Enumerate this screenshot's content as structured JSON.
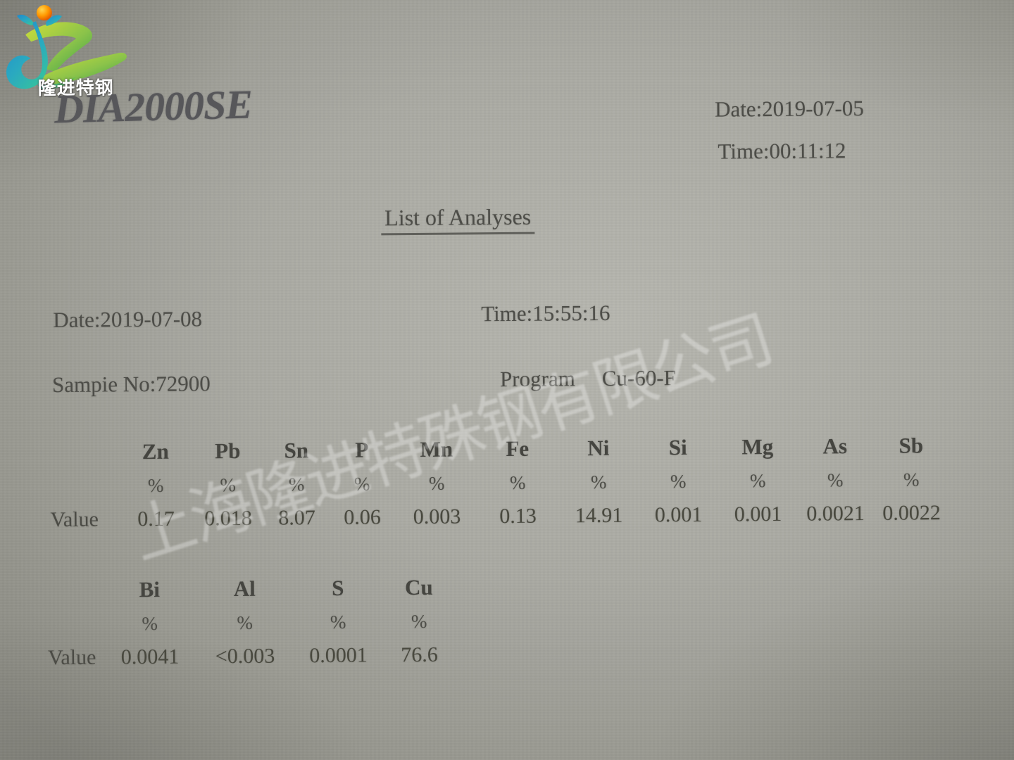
{
  "page": {
    "logo": {
      "text": "隆进特钢"
    },
    "title": "DIA2000SE",
    "printed": {
      "date_label": "Date:2019-07-05",
      "time_label": "Time:00:11:12"
    },
    "heading": "List of Analyses",
    "analysis": {
      "date": "Date:2019-07-08",
      "time": "Time:15:55:16",
      "sample_no": "Sampie No:72900",
      "program_label": "Program",
      "program_value": "Cu-60-F",
      "value_label": "Value",
      "unit": "%",
      "rows": [
        {
          "elements": [
            "Zn",
            "Pb",
            "Sn",
            "P",
            "Mn",
            "Fe",
            "Ni",
            "Si",
            "Mg",
            "As",
            "Sb"
          ],
          "values": [
            "0.17",
            "0.018",
            "8.07",
            "0.06",
            "0.003",
            "0.13",
            "14.91",
            "0.001",
            "0.001",
            "0.0021",
            "0.0022"
          ]
        },
        {
          "elements": [
            "Bi",
            "Al",
            "S",
            "Cu"
          ],
          "values": [
            "0.0041",
            "<0.003",
            "0.0001",
            "76.6"
          ]
        }
      ]
    },
    "watermark": "上海隆进特殊钢有限公司",
    "colors": {
      "paper": "#aaaaa3",
      "ink": "#4d4d48",
      "logo_orange": "#ff8f00",
      "logo_blue": "#1e88cf",
      "logo_teal": "#29b6a8",
      "logo_green": "#8bc34a",
      "watermark_white": "#ffffff"
    }
  }
}
